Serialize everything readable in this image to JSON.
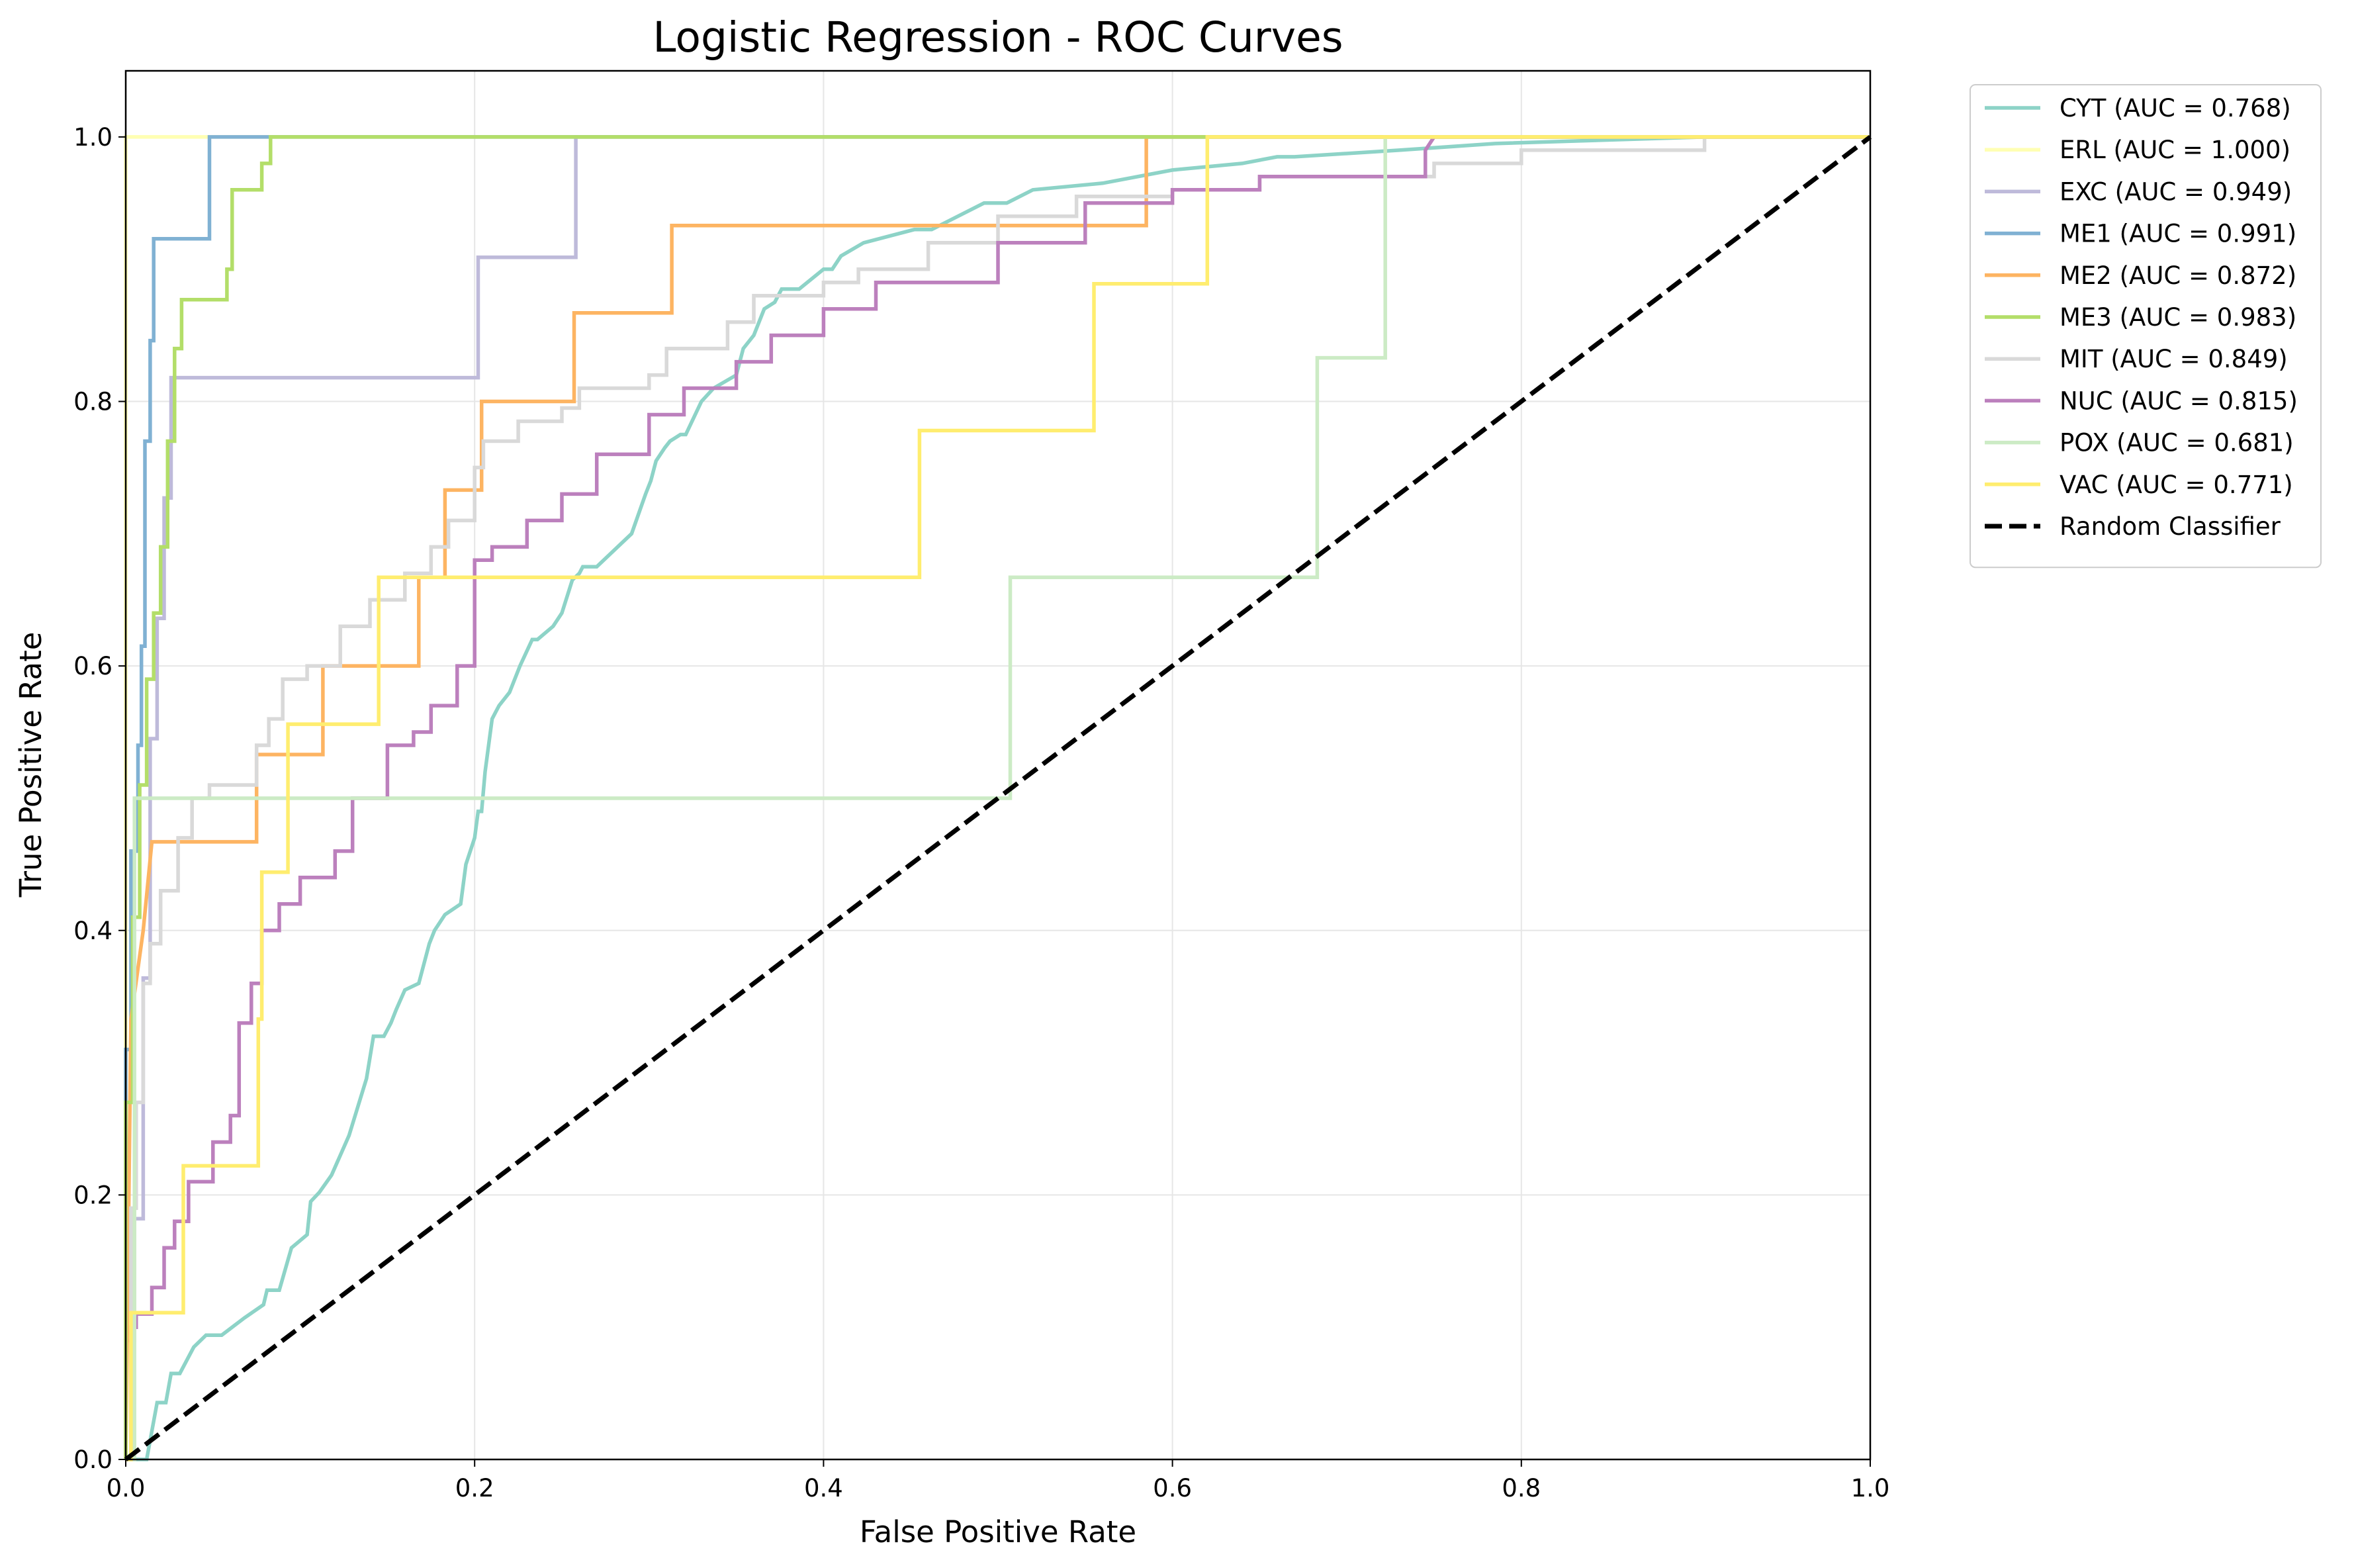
{
  "chart_data": {
    "type": "line",
    "title": "Logistic Regression - ROC Curves",
    "xlabel": "False Positive Rate",
    "ylabel": "True Positive Rate",
    "xlim": [
      0,
      1
    ],
    "ylim": [
      0,
      1.05
    ],
    "xticks": [
      "0.0",
      "0.2",
      "0.4",
      "0.6",
      "0.8",
      "1.0"
    ],
    "yticks": [
      "0.0",
      "0.2",
      "0.4",
      "0.6",
      "0.8",
      "1.0"
    ],
    "grid": true,
    "legend_position": "outside-top-right",
    "series": [
      {
        "name": "CYT (AUC = 0.768)",
        "color": "#8dd3c7",
        "dash": false,
        "x": [
          0,
          0.012,
          0.018,
          0.023,
          0.026,
          0.031,
          0.035,
          0.039,
          0.046,
          0.055,
          0.068,
          0.079,
          0.081,
          0.088,
          0.095,
          0.104,
          0.106,
          0.111,
          0.118,
          0.128,
          0.138,
          0.142,
          0.148,
          0.152,
          0.155,
          0.16,
          0.168,
          0.17,
          0.174,
          0.177,
          0.183,
          0.192,
          0.195,
          0.2,
          0.202,
          0.204,
          0.206,
          0.21,
          0.212,
          0.214,
          0.22,
          0.226,
          0.233,
          0.236,
          0.245,
          0.25,
          0.256,
          0.26,
          0.262,
          0.27,
          0.29,
          0.298,
          0.301,
          0.304,
          0.309,
          0.312,
          0.318,
          0.321,
          0.33,
          0.337,
          0.35,
          0.354,
          0.36,
          0.366,
          0.372,
          0.376,
          0.386,
          0.4,
          0.405,
          0.41,
          0.423,
          0.452,
          0.462,
          0.492,
          0.505,
          0.52,
          0.56,
          0.6,
          0.64,
          0.66,
          0.67,
          0.73,
          0.785,
          0.905,
          1.0
        ],
        "y": [
          0,
          0.0,
          0.043,
          0.043,
          0.065,
          0.065,
          0.075,
          0.085,
          0.094,
          0.094,
          0.107,
          0.117,
          0.128,
          0.128,
          0.16,
          0.17,
          0.195,
          0.202,
          0.215,
          0.245,
          0.288,
          0.32,
          0.32,
          0.33,
          0.34,
          0.355,
          0.36,
          0.37,
          0.39,
          0.4,
          0.412,
          0.42,
          0.45,
          0.47,
          0.49,
          0.49,
          0.52,
          0.56,
          0.565,
          0.57,
          0.58,
          0.6,
          0.62,
          0.62,
          0.63,
          0.64,
          0.665,
          0.67,
          0.675,
          0.675,
          0.7,
          0.73,
          0.74,
          0.755,
          0.765,
          0.77,
          0.775,
          0.775,
          0.8,
          0.81,
          0.82,
          0.84,
          0.85,
          0.87,
          0.875,
          0.885,
          0.885,
          0.9,
          0.9,
          0.91,
          0.92,
          0.93,
          0.93,
          0.95,
          0.95,
          0.96,
          0.965,
          0.975,
          0.98,
          0.985,
          0.985,
          0.99,
          0.995,
          1.0,
          1.0
        ]
      },
      {
        "name": "ERL (AUC = 1.000)",
        "color": "#ffffb3",
        "dash": false,
        "x": [
          0,
          0,
          1
        ],
        "y": [
          0,
          1,
          1
        ]
      },
      {
        "name": "EXC (AUC = 0.949)",
        "color": "#bebada",
        "dash": false,
        "x": [
          0,
          0,
          0.005,
          0.005,
          0.01,
          0.01,
          0.014,
          0.014,
          0.018,
          0.018,
          0.022,
          0.022,
          0.026,
          0.026,
          0.202,
          0.202,
          0.258,
          0.258,
          1.0
        ],
        "y": [
          0,
          0.09,
          0.09,
          0.182,
          0.182,
          0.364,
          0.364,
          0.545,
          0.545,
          0.636,
          0.636,
          0.727,
          0.727,
          0.818,
          0.818,
          0.909,
          0.909,
          1.0,
          1.0
        ]
      },
      {
        "name": "ME1 (AUC = 0.991)",
        "color": "#80b1d3",
        "dash": false,
        "x": [
          0,
          0,
          0.003,
          0.003,
          0.007,
          0.007,
          0.009,
          0.009,
          0.011,
          0.011,
          0.014,
          0.014,
          0.016,
          0.016,
          0.048,
          0.048,
          0.083,
          1.0
        ],
        "y": [
          0,
          0.31,
          0.31,
          0.46,
          0.46,
          0.54,
          0.54,
          0.615,
          0.615,
          0.77,
          0.77,
          0.846,
          0.846,
          0.923,
          0.923,
          1.0,
          1.0,
          1.0
        ]
      },
      {
        "name": "ME2 (AUC = 0.872)",
        "color": "#fdb462",
        "dash": false,
        "x": [
          0,
          0.003,
          0.003,
          0.01,
          0.01,
          0.015,
          0.015,
          0.075,
          0.075,
          0.113,
          0.113,
          0.168,
          0.168,
          0.183,
          0.183,
          0.204,
          0.204,
          0.257,
          0.257,
          0.313,
          0.313,
          0.585,
          0.585,
          1.0
        ],
        "y": [
          0,
          0.333,
          0.333,
          0.4,
          0.4,
          0.467,
          0.467,
          0.467,
          0.533,
          0.533,
          0.6,
          0.6,
          0.667,
          0.667,
          0.733,
          0.733,
          0.8,
          0.8,
          0.867,
          0.867,
          0.933,
          0.933,
          1.0,
          1.0
        ]
      },
      {
        "name": "ME3 (AUC = 0.983)",
        "color": "#b3de69",
        "dash": false,
        "x": [
          0,
          0,
          0.004,
          0.004,
          0.008,
          0.008,
          0.012,
          0.012,
          0.016,
          0.016,
          0.02,
          0.02,
          0.024,
          0.024,
          0.028,
          0.028,
          0.032,
          0.032,
          0.058,
          0.058,
          0.061,
          0.061,
          0.078,
          0.078,
          0.083,
          0.083,
          1.0
        ],
        "y": [
          0,
          0.27,
          0.27,
          0.41,
          0.41,
          0.51,
          0.51,
          0.59,
          0.59,
          0.64,
          0.64,
          0.69,
          0.69,
          0.77,
          0.77,
          0.84,
          0.84,
          0.877,
          0.877,
          0.9,
          0.9,
          0.96,
          0.96,
          0.98,
          0.98,
          1.0,
          1.0
        ]
      },
      {
        "name": "MIT (AUC = 0.849)",
        "color": "#d9d9d9",
        "dash": false,
        "x": [
          0,
          0.003,
          0.003,
          0.006,
          0.006,
          0.01,
          0.01,
          0.014,
          0.014,
          0.02,
          0.02,
          0.03,
          0.03,
          0.038,
          0.038,
          0.048,
          0.048,
          0.075,
          0.075,
          0.082,
          0.082,
          0.09,
          0.09,
          0.104,
          0.104,
          0.123,
          0.123,
          0.14,
          0.14,
          0.16,
          0.16,
          0.175,
          0.175,
          0.185,
          0.185,
          0.2,
          0.2,
          0.205,
          0.205,
          0.225,
          0.225,
          0.25,
          0.25,
          0.26,
          0.26,
          0.3,
          0.3,
          0.31,
          0.31,
          0.345,
          0.345,
          0.36,
          0.36,
          0.4,
          0.4,
          0.42,
          0.42,
          0.46,
          0.46,
          0.5,
          0.5,
          0.545,
          0.545,
          0.6,
          0.6,
          0.65,
          0.65,
          0.75,
          0.75,
          0.8,
          0.8,
          0.905,
          0.905,
          1.0
        ],
        "y": [
          0,
          0,
          0.19,
          0.19,
          0.27,
          0.27,
          0.36,
          0.36,
          0.39,
          0.39,
          0.43,
          0.43,
          0.47,
          0.47,
          0.5,
          0.5,
          0.51,
          0.51,
          0.54,
          0.54,
          0.56,
          0.56,
          0.59,
          0.59,
          0.6,
          0.6,
          0.63,
          0.63,
          0.65,
          0.65,
          0.67,
          0.67,
          0.69,
          0.69,
          0.71,
          0.71,
          0.75,
          0.75,
          0.77,
          0.77,
          0.785,
          0.785,
          0.795,
          0.795,
          0.81,
          0.81,
          0.82,
          0.82,
          0.84,
          0.84,
          0.86,
          0.86,
          0.88,
          0.88,
          0.89,
          0.89,
          0.9,
          0.9,
          0.92,
          0.92,
          0.94,
          0.94,
          0.955,
          0.955,
          0.96,
          0.96,
          0.97,
          0.97,
          0.98,
          0.98,
          0.99,
          0.99,
          1.0,
          1.0
        ]
      },
      {
        "name": "NUC (AUC = 0.815)",
        "color": "#bc80bd",
        "dash": false,
        "x": [
          0,
          0.003,
          0.003,
          0.006,
          0.006,
          0.015,
          0.015,
          0.022,
          0.022,
          0.028,
          0.028,
          0.036,
          0.036,
          0.05,
          0.05,
          0.06,
          0.06,
          0.065,
          0.065,
          0.072,
          0.072,
          0.078,
          0.078,
          0.088,
          0.088,
          0.1,
          0.1,
          0.12,
          0.12,
          0.13,
          0.13,
          0.15,
          0.15,
          0.165,
          0.165,
          0.175,
          0.175,
          0.19,
          0.19,
          0.2,
          0.2,
          0.21,
          0.21,
          0.23,
          0.23,
          0.25,
          0.25,
          0.27,
          0.27,
          0.3,
          0.3,
          0.32,
          0.32,
          0.35,
          0.35,
          0.37,
          0.37,
          0.4,
          0.4,
          0.43,
          0.43,
          0.5,
          0.5,
          0.55,
          0.55,
          0.6,
          0.6,
          0.65,
          0.65,
          0.745,
          0.745,
          0.75,
          1.0
        ],
        "y": [
          0,
          0,
          0.1,
          0.1,
          0.11,
          0.11,
          0.13,
          0.13,
          0.16,
          0.16,
          0.18,
          0.18,
          0.21,
          0.21,
          0.24,
          0.24,
          0.26,
          0.26,
          0.33,
          0.33,
          0.36,
          0.36,
          0.4,
          0.4,
          0.42,
          0.42,
          0.44,
          0.44,
          0.46,
          0.46,
          0.5,
          0.5,
          0.54,
          0.54,
          0.55,
          0.55,
          0.57,
          0.57,
          0.6,
          0.6,
          0.68,
          0.68,
          0.69,
          0.69,
          0.71,
          0.71,
          0.73,
          0.73,
          0.76,
          0.76,
          0.79,
          0.79,
          0.81,
          0.81,
          0.83,
          0.83,
          0.85,
          0.85,
          0.87,
          0.87,
          0.89,
          0.89,
          0.92,
          0.92,
          0.95,
          0.95,
          0.96,
          0.96,
          0.97,
          0.97,
          0.99,
          1.0,
          1.0
        ]
      },
      {
        "name": "POX (AUC = 0.681)",
        "color": "#ccebc5",
        "dash": false,
        "x": [
          0,
          0.005,
          0.005,
          0.507,
          0.507,
          0.683,
          0.683,
          0.722,
          0.722,
          1.0
        ],
        "y": [
          0,
          0,
          0.5,
          0.5,
          0.667,
          0.667,
          0.833,
          0.833,
          1.0,
          1.0
        ]
      },
      {
        "name": "VAC (AUC = 0.771)",
        "color": "#ffed6f",
        "dash": false,
        "x": [
          0,
          0.003,
          0.003,
          0.033,
          0.033,
          0.076,
          0.076,
          0.078,
          0.078,
          0.093,
          0.093,
          0.145,
          0.145,
          0.455,
          0.455,
          0.555,
          0.555,
          0.62,
          0.62,
          1.0
        ],
        "y": [
          0,
          0,
          0.111,
          0.111,
          0.222,
          0.222,
          0.333,
          0.333,
          0.444,
          0.444,
          0.556,
          0.556,
          0.667,
          0.667,
          0.778,
          0.778,
          0.889,
          0.889,
          1.0,
          1.0
        ]
      },
      {
        "name": "Random Classifier",
        "color": "#000000",
        "dash": true,
        "x": [
          0,
          1
        ],
        "y": [
          0,
          1
        ]
      }
    ]
  }
}
